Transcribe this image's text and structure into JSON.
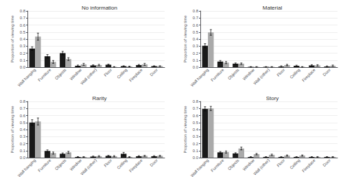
{
  "chart_data": [
    {
      "type": "bar",
      "title": "No information",
      "categories": [
        "Wall hanging",
        "Furniture",
        "Objects",
        "Window",
        "Wall (other)",
        "Floor",
        "Ceiling",
        "Fireplace",
        "Door"
      ],
      "ylabel": "Proportion of viewing time",
      "series": [
        {
          "color": "#1a1a1a",
          "values": [
            0.265,
            0.155,
            0.2,
            0.02,
            0.025,
            0.035,
            0.015,
            0.03,
            0.015
          ],
          "errors": [
            0.025,
            0.025,
            0.025,
            0.01,
            0.008,
            0.008,
            0.005,
            0.008,
            0.005
          ]
        },
        {
          "color": "#aaaaaa",
          "values": [
            0.435,
            0.075,
            0.115,
            0.04,
            0.03,
            0.005,
            0.01,
            0.04,
            0.015
          ],
          "errors": [
            0.05,
            0.02,
            0.02,
            0.015,
            0.01,
            0.003,
            0.005,
            0.015,
            0.005
          ]
        }
      ],
      "ylim": [
        0.0,
        0.8
      ],
      "yticks": [
        {
          "value": 0.0,
          "label": "0.0"
        },
        0.1,
        0.2,
        0.3,
        0.4,
        0.5,
        0.6,
        0.7,
        0.8
      ],
      "grid": true
    },
    {
      "type": "bar",
      "title": "Material",
      "categories": [
        "Wall hanging",
        "Furniture",
        "Objects",
        "Window",
        "Wall (other)",
        "Floor",
        "Ceiling",
        "Fireplace",
        "Door"
      ],
      "ylabel": "Proportion of viewing time",
      "series": [
        {
          "color": "#1a1a1a",
          "values": [
            0.305,
            0.08,
            0.05,
            0.005,
            0.005,
            0.01,
            0.02,
            0.025,
            0.01
          ],
          "errors": [
            0.03,
            0.015,
            0.01,
            0.003,
            0.003,
            0.01,
            0.008,
            0.01,
            0.008
          ]
        },
        {
          "color": "#aaaaaa",
          "values": [
            0.495,
            0.065,
            0.05,
            0.005,
            0.005,
            0.03,
            0.005,
            0.025,
            0.02
          ],
          "errors": [
            0.04,
            0.015,
            0.01,
            0.003,
            0.003,
            0.01,
            0.003,
            0.01,
            0.01
          ]
        }
      ],
      "ylim": [
        0.0,
        0.8
      ],
      "yticks": [
        {
          "value": 0.0,
          "label": "0.0"
        },
        0.1,
        0.2,
        0.3,
        0.4,
        0.5,
        0.6,
        0.7,
        0.8
      ],
      "grid": true
    },
    {
      "type": "bar",
      "title": "Rarity",
      "categories": [
        "Wall hanging",
        "Furniture",
        "Objects",
        "Window",
        "Wall (other)",
        "Floor",
        "Ceiling",
        "Fireplace",
        "Door"
      ],
      "ylabel": "Proportion of viewing time",
      "series": [
        {
          "color": "#1a1a1a",
          "values": [
            0.5,
            0.095,
            0.055,
            0.01,
            0.015,
            0.025,
            0.055,
            0.02,
            0.02
          ],
          "errors": [
            0.04,
            0.015,
            0.012,
            0.005,
            0.008,
            0.008,
            0.02,
            0.008,
            0.008
          ]
        },
        {
          "color": "#aaaaaa",
          "values": [
            0.515,
            0.065,
            0.075,
            0.01,
            0.02,
            0.02,
            0.01,
            0.025,
            0.025
          ],
          "errors": [
            0.05,
            0.015,
            0.015,
            0.005,
            0.008,
            0.008,
            0.005,
            0.008,
            0.008
          ]
        }
      ],
      "ylim": [
        0.0,
        0.8
      ],
      "yticks": [
        {
          "value": 0.0,
          "label": "0.0"
        },
        0.1,
        0.2,
        0.3,
        0.4,
        0.5,
        0.6,
        0.7,
        0.8
      ],
      "grid": true
    },
    {
      "type": "bar",
      "title": "Story",
      "categories": [
        "Wall hanging",
        "Furniture",
        "Objects",
        "Window",
        "Wall (other)",
        "Floor",
        "Ceiling",
        "Fireplace",
        "Door"
      ],
      "ylabel": "Proportion of viewing time",
      "series": [
        {
          "color": "#1a1a1a",
          "values": [
            0.695,
            0.075,
            0.06,
            0.01,
            0.01,
            0.01,
            0.01,
            0.01,
            0.01
          ],
          "errors": [
            0.03,
            0.012,
            0.01,
            0.004,
            0.004,
            0.005,
            0.004,
            0.004,
            0.004
          ]
        },
        {
          "color": "#aaaaaa",
          "values": [
            0.7,
            0.08,
            0.13,
            0.05,
            0.04,
            0.03,
            0.03,
            0.01,
            0.01
          ],
          "errors": [
            0.03,
            0.015,
            0.02,
            0.01,
            0.01,
            0.008,
            0.008,
            0.005,
            0.005
          ]
        }
      ],
      "ylim": [
        0.0,
        0.8
      ],
      "yticks": [
        {
          "value": 0.0,
          "label": "0.0"
        },
        0.1,
        0.2,
        0.3,
        0.4,
        0.5,
        0.6,
        0.7,
        0.8
      ],
      "grid": true
    }
  ]
}
